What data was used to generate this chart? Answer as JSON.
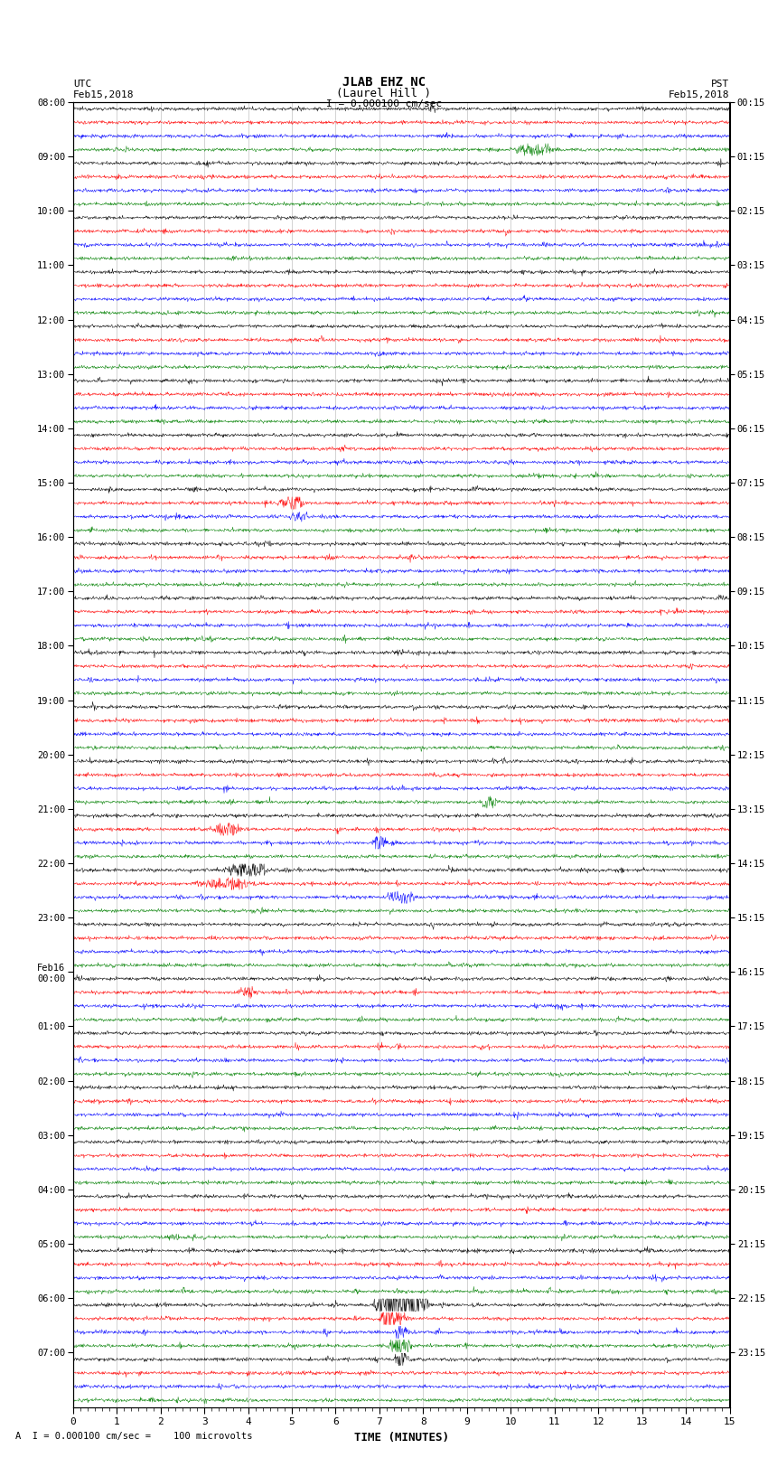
{
  "title_line1": "JLAB EHZ NC",
  "title_line2": "(Laurel Hill )",
  "scale_label": "I = 0.000100 cm/sec",
  "utc_label": "UTC",
  "utc_date": "Feb15,2018",
  "pst_label": "PST",
  "pst_date": "Feb15,2018",
  "xlabel": "TIME (MINUTES)",
  "footer": "A  I = 0.000100 cm/sec =    100 microvolts",
  "left_times_utc": [
    "08:00",
    "09:00",
    "10:00",
    "11:00",
    "12:00",
    "13:00",
    "14:00",
    "15:00",
    "16:00",
    "17:00",
    "18:00",
    "19:00",
    "20:00",
    "21:00",
    "22:00",
    "23:00",
    "Feb16\n00:00",
    "01:00",
    "02:00",
    "03:00",
    "04:00",
    "05:00",
    "06:00",
    "07:00"
  ],
  "right_times_pst": [
    "00:15",
    "01:15",
    "02:15",
    "03:15",
    "04:15",
    "05:15",
    "06:15",
    "07:15",
    "08:15",
    "09:15",
    "10:15",
    "11:15",
    "12:15",
    "13:15",
    "14:15",
    "15:15",
    "16:15",
    "17:15",
    "18:15",
    "19:15",
    "20:15",
    "21:15",
    "22:15",
    "23:15"
  ],
  "n_rows": 24,
  "traces_per_row": 4,
  "colors": [
    "black",
    "red",
    "blue",
    "green"
  ],
  "noise_level": 0.06,
  "bg_color": "white",
  "n_minutes": 15,
  "special_events": [
    {
      "row": 0,
      "trace": 0,
      "minute": 8.2,
      "amplitude": 0.5,
      "duration": 0.3,
      "freq": 8
    },
    {
      "row": 0,
      "trace": 2,
      "minute": 8.5,
      "amplitude": 0.4,
      "duration": 0.4,
      "freq": 6
    },
    {
      "row": 0,
      "trace": 3,
      "minute": 10.5,
      "amplitude": 0.6,
      "duration": 1.5,
      "freq": 5
    },
    {
      "row": 7,
      "trace": 1,
      "minute": 5.0,
      "amplitude": 0.6,
      "duration": 1.0,
      "freq": 5
    },
    {
      "row": 7,
      "trace": 2,
      "minute": 5.2,
      "amplitude": 0.5,
      "duration": 0.8,
      "freq": 6
    },
    {
      "row": 12,
      "trace": 3,
      "minute": 9.5,
      "amplitude": 0.7,
      "duration": 0.5,
      "freq": 5
    },
    {
      "row": 13,
      "trace": 1,
      "minute": 3.5,
      "amplitude": 0.8,
      "duration": 1.0,
      "freq": 4
    },
    {
      "row": 13,
      "trace": 2,
      "minute": 7.0,
      "amplitude": 1.0,
      "duration": 0.5,
      "freq": 8
    },
    {
      "row": 14,
      "trace": 0,
      "minute": 4.0,
      "amplitude": 0.8,
      "duration": 1.5,
      "freq": 5
    },
    {
      "row": 14,
      "trace": 1,
      "minute": 3.5,
      "amplitude": 0.6,
      "duration": 2.0,
      "freq": 4
    },
    {
      "row": 14,
      "trace": 2,
      "minute": 7.5,
      "amplitude": 0.7,
      "duration": 1.0,
      "freq": 6
    },
    {
      "row": 16,
      "trace": 1,
      "minute": 4.0,
      "amplitude": 0.5,
      "duration": 0.8,
      "freq": 5
    },
    {
      "row": 22,
      "trace": 0,
      "minute": 7.5,
      "amplitude": 5.0,
      "duration": 1.5,
      "freq": 10
    },
    {
      "row": 22,
      "trace": 1,
      "minute": 7.3,
      "amplitude": 1.5,
      "duration": 0.8,
      "freq": 8
    },
    {
      "row": 22,
      "trace": 2,
      "minute": 7.5,
      "amplitude": 0.8,
      "duration": 0.5,
      "freq": 6
    },
    {
      "row": 22,
      "trace": 3,
      "minute": 7.5,
      "amplitude": 1.2,
      "duration": 0.8,
      "freq": 7
    },
    {
      "row": 23,
      "trace": 0,
      "minute": 7.5,
      "amplitude": 1.0,
      "duration": 0.5,
      "freq": 8
    }
  ]
}
